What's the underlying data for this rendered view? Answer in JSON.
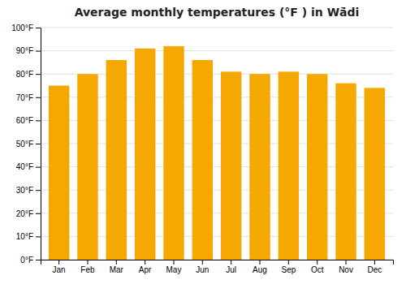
{
  "chart_data": {
    "type": "bar",
    "title": "Average monthly temperatures (°F ) in Wā̇di",
    "categories": [
      "Jan",
      "Feb",
      "Mar",
      "Apr",
      "May",
      "Jun",
      "Jul",
      "Aug",
      "Sep",
      "Oct",
      "Nov",
      "Dec"
    ],
    "values": [
      75,
      80,
      86,
      91,
      92,
      86,
      81,
      80,
      81,
      80,
      76,
      74
    ],
    "color": "#F5A800",
    "ylim": [
      0,
      100
    ],
    "yticks": [
      {
        "value": 0,
        "label": "0°F"
      },
      {
        "value": 10,
        "label": "10°F"
      },
      {
        "value": 20,
        "label": "20°F"
      },
      {
        "value": 30,
        "label": "30°F"
      },
      {
        "value": 40,
        "label": "40°F"
      },
      {
        "value": 50,
        "label": "50°F"
      },
      {
        "value": 60,
        "label": "60°F"
      },
      {
        "value": 70,
        "label": "70°F"
      },
      {
        "value": 80,
        "label": "80°F"
      },
      {
        "value": 90,
        "label": "90°F"
      },
      {
        "value": 100,
        "label": "100°F"
      }
    ],
    "grid": true
  }
}
